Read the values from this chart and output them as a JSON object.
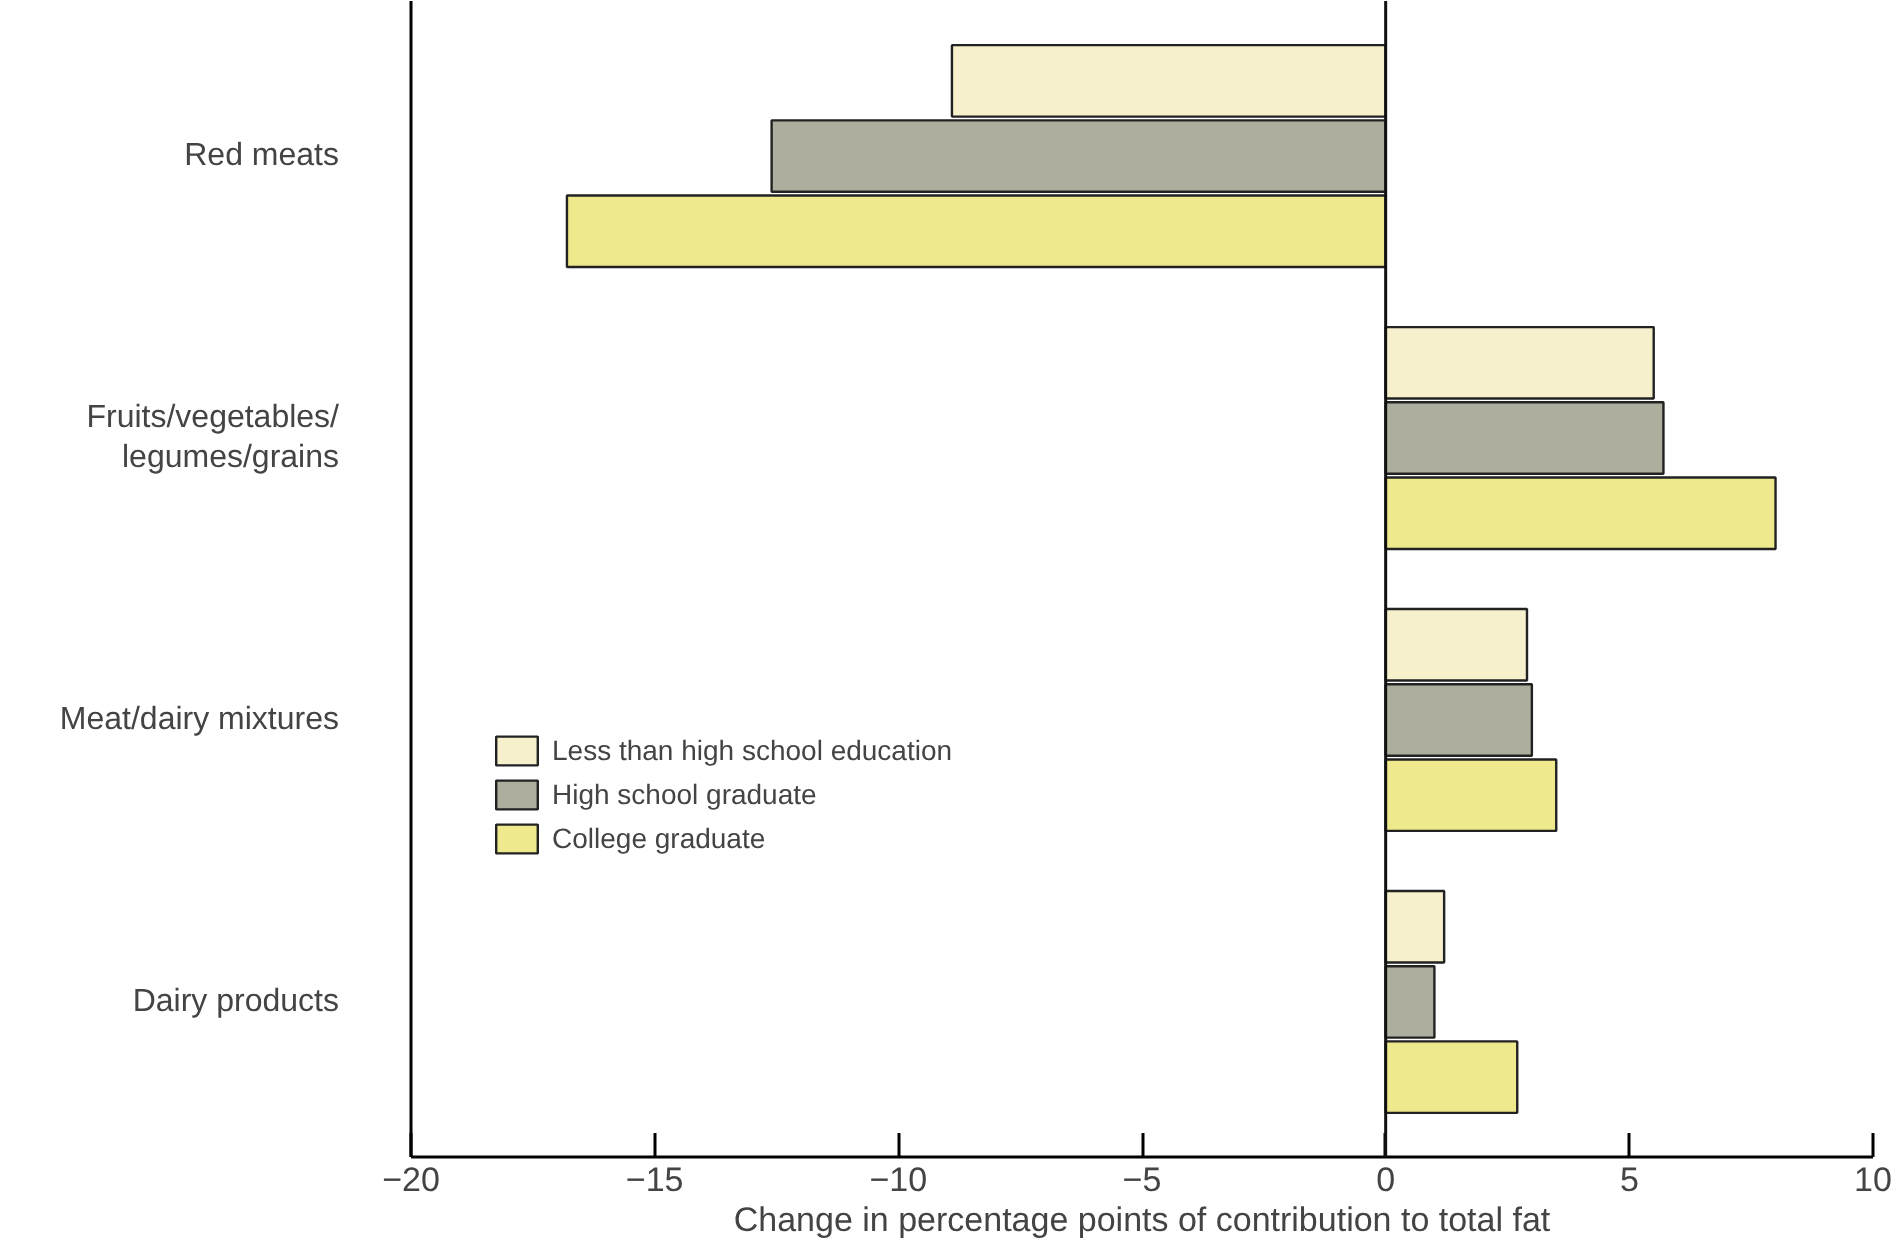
{
  "chart_data": {
    "type": "bar",
    "orientation": "horizontal",
    "xlabel": "Change in percentage points of contribution to total fat",
    "categories": [
      "Red meats",
      "Fruits/vegetables/\nlegumes/grains",
      "Meat/dairy mixtures",
      "Dairy products"
    ],
    "series": [
      {
        "name": "Less than high school education",
        "color": "#f6f1cc",
        "values": [
          -8.9,
          5.5,
          2.9,
          1.2
        ]
      },
      {
        "name": "High school graduate",
        "color": "#aeae9e",
        "values": [
          -12.6,
          5.7,
          3.0,
          1.0
        ]
      },
      {
        "name": "College graduate",
        "color": "#ede98c",
        "values": [
          -16.8,
          8.0,
          3.5,
          2.7
        ]
      }
    ],
    "xlim": [
      -20,
      10
    ],
    "xticks": [
      -20,
      -15,
      -10,
      -5,
      0,
      5,
      10
    ],
    "ref_lines": [
      {
        "axis": "x",
        "value": 0
      }
    ],
    "legend": "left",
    "grid": false
  }
}
